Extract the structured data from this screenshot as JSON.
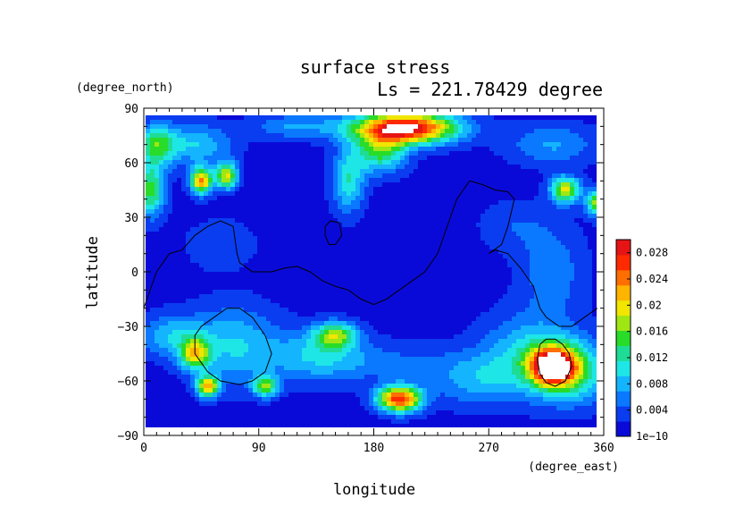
{
  "chart_data": {
    "type": "heatmap",
    "title": "surface stress",
    "subtitle": "Ls = 221.78429 degree",
    "xlabel": "longitude",
    "ylabel": "latitude",
    "x_units": "(degree_east)",
    "y_units": "(degree_north)",
    "xlim": [
      0,
      360
    ],
    "ylim": [
      -90,
      90
    ],
    "x_ticks": [
      "0",
      "90",
      "180",
      "270",
      "360"
    ],
    "y_ticks": [
      "90",
      "60",
      "30",
      "0",
      "−30",
      "−60",
      "−90"
    ],
    "x_tick_values": [
      0,
      90,
      180,
      270,
      360
    ],
    "y_tick_values": [
      90,
      60,
      30,
      0,
      -30,
      -60,
      -90
    ],
    "colorbar": {
      "labels": [
        "1e−10",
        "0.004",
        "0.008",
        "0.012",
        "0.016",
        "0.02",
        "0.024",
        "0.028"
      ],
      "label_values": [
        0,
        0.004,
        0.008,
        0.012,
        0.016,
        0.02,
        0.024,
        0.028
      ],
      "range": [
        0,
        0.03
      ],
      "colors": [
        "#0a0ad8",
        "#0a3cf0",
        "#0a78ff",
        "#14b4ff",
        "#1ee6e6",
        "#1edc96",
        "#28dc28",
        "#a0e614",
        "#f0e600",
        "#ffb400",
        "#ff6e00",
        "#ff2a00",
        "#e61414"
      ]
    },
    "blobs": [
      {
        "lon": 205,
        "lat": 79,
        "slon": 28,
        "slat": 6,
        "amp": 0.03
      },
      {
        "lon": 185,
        "lat": 66,
        "slon": 14,
        "slat": 8,
        "amp": 0.013
      },
      {
        "lon": 160,
        "lat": 50,
        "slon": 9,
        "slat": 12,
        "amp": 0.01
      },
      {
        "lon": 120,
        "lat": 80,
        "slon": 25,
        "slat": 5,
        "amp": 0.006
      },
      {
        "lon": 45,
        "lat": 50,
        "slon": 6,
        "slat": 5,
        "amp": 0.022
      },
      {
        "lon": 65,
        "lat": 53,
        "slon": 6,
        "slat": 5,
        "amp": 0.018
      },
      {
        "lon": 10,
        "lat": 70,
        "slon": 10,
        "slat": 8,
        "amp": 0.012
      },
      {
        "lon": 5,
        "lat": 45,
        "slon": 8,
        "slat": 10,
        "amp": 0.014
      },
      {
        "lon": 40,
        "lat": 70,
        "slon": 20,
        "slat": 8,
        "amp": 0.008
      },
      {
        "lon": 330,
        "lat": 45,
        "slon": 8,
        "slat": 5,
        "amp": 0.018
      },
      {
        "lon": 355,
        "lat": 38,
        "slon": 6,
        "slat": 5,
        "amp": 0.016
      },
      {
        "lon": 320,
        "lat": 70,
        "slon": 25,
        "slat": 8,
        "amp": 0.006
      },
      {
        "lon": 320,
        "lat": 0,
        "slon": 18,
        "slat": 18,
        "amp": 0.005
      },
      {
        "lon": 320,
        "lat": -52,
        "slon": 12,
        "slat": 7,
        "amp": 0.028
      },
      {
        "lon": 335,
        "lat": -55,
        "slon": 20,
        "slat": 12,
        "amp": 0.012
      },
      {
        "lon": 300,
        "lat": -45,
        "slon": 25,
        "slat": 15,
        "amp": 0.008
      },
      {
        "lon": 200,
        "lat": -70,
        "slon": 12,
        "slat": 5,
        "amp": 0.026
      },
      {
        "lon": 150,
        "lat": -35,
        "slon": 12,
        "slat": 5,
        "amp": 0.014
      },
      {
        "lon": 135,
        "lat": -45,
        "slon": 25,
        "slat": 10,
        "amp": 0.006
      },
      {
        "lon": 50,
        "lat": -63,
        "slon": 6,
        "slat": 4,
        "amp": 0.02
      },
      {
        "lon": 95,
        "lat": -63,
        "slon": 7,
        "slat": 4,
        "amp": 0.014
      },
      {
        "lon": 40,
        "lat": -45,
        "slon": 8,
        "slat": 6,
        "amp": 0.016
      },
      {
        "lon": 70,
        "lat": -40,
        "slon": 25,
        "slat": 15,
        "amp": 0.008
      },
      {
        "lon": 20,
        "lat": -35,
        "slon": 18,
        "slat": 8,
        "amp": 0.007
      },
      {
        "lon": 260,
        "lat": -60,
        "slon": 25,
        "slat": 10,
        "amp": 0.006
      },
      {
        "lon": 180,
        "lat": -50,
        "slon": 50,
        "slat": 8,
        "amp": 0.004
      },
      {
        "lon": 60,
        "lat": 15,
        "slon": 20,
        "slat": 10,
        "amp": 0.003
      },
      {
        "lon": 290,
        "lat": 25,
        "slon": 20,
        "slat": 10,
        "amp": 0.003
      }
    ],
    "contours": [
      {
        "name": "tharsis-outline",
        "points": [
          [
            0,
            -20
          ],
          [
            10,
            0
          ],
          [
            20,
            10
          ],
          [
            30,
            12
          ],
          [
            40,
            20
          ],
          [
            50,
            25
          ],
          [
            60,
            28
          ],
          [
            70,
            25
          ],
          [
            73,
            10
          ],
          [
            75,
            5
          ],
          [
            85,
            0
          ],
          [
            100,
            0
          ],
          [
            110,
            2
          ],
          [
            120,
            3
          ],
          [
            130,
            0
          ],
          [
            140,
            -5
          ],
          [
            150,
            -8
          ],
          [
            160,
            -10
          ],
          [
            170,
            -15
          ],
          [
            180,
            -18
          ],
          [
            190,
            -15
          ],
          [
            200,
            -10
          ],
          [
            210,
            -5
          ],
          [
            220,
            0
          ],
          [
            230,
            10
          ],
          [
            235,
            20
          ],
          [
            240,
            30
          ],
          [
            245,
            40
          ],
          [
            250,
            45
          ],
          [
            255,
            50
          ],
          [
            265,
            48
          ],
          [
            275,
            45
          ],
          [
            285,
            44
          ],
          [
            290,
            40
          ],
          [
            285,
            25
          ],
          [
            280,
            15
          ],
          [
            270,
            10
          ],
          [
            275,
            12
          ],
          [
            285,
            10
          ],
          [
            295,
            2
          ],
          [
            305,
            -8
          ],
          [
            310,
            -20
          ],
          [
            315,
            -25
          ],
          [
            325,
            -30
          ],
          [
            335,
            -30
          ],
          [
            345,
            -25
          ],
          [
            355,
            -20
          ]
        ]
      },
      {
        "name": "small-contour",
        "points": [
          [
            142,
            20
          ],
          [
            145,
            15
          ],
          [
            150,
            15
          ],
          [
            155,
            20
          ],
          [
            153,
            27
          ],
          [
            146,
            28
          ],
          [
            142,
            25
          ],
          [
            142,
            20
          ]
        ]
      },
      {
        "name": "hellas-outline",
        "points": [
          [
            55,
            -25
          ],
          [
            65,
            -20
          ],
          [
            75,
            -20
          ],
          [
            85,
            -25
          ],
          [
            95,
            -35
          ],
          [
            100,
            -45
          ],
          [
            95,
            -55
          ],
          [
            85,
            -60
          ],
          [
            75,
            -62
          ],
          [
            60,
            -60
          ],
          [
            50,
            -55
          ],
          [
            40,
            -45
          ],
          [
            40,
            -35
          ],
          [
            45,
            -30
          ],
          [
            55,
            -25
          ]
        ]
      },
      {
        "name": "argyre-outline",
        "points": [
          [
            310,
            -40
          ],
          [
            315,
            -37
          ],
          [
            322,
            -37
          ],
          [
            328,
            -40
          ],
          [
            333,
            -45
          ],
          [
            335,
            -52
          ],
          [
            330,
            -60
          ],
          [
            322,
            -63
          ],
          [
            315,
            -61
          ],
          [
            310,
            -56
          ],
          [
            308,
            -48
          ],
          [
            310,
            -40
          ]
        ]
      }
    ]
  }
}
